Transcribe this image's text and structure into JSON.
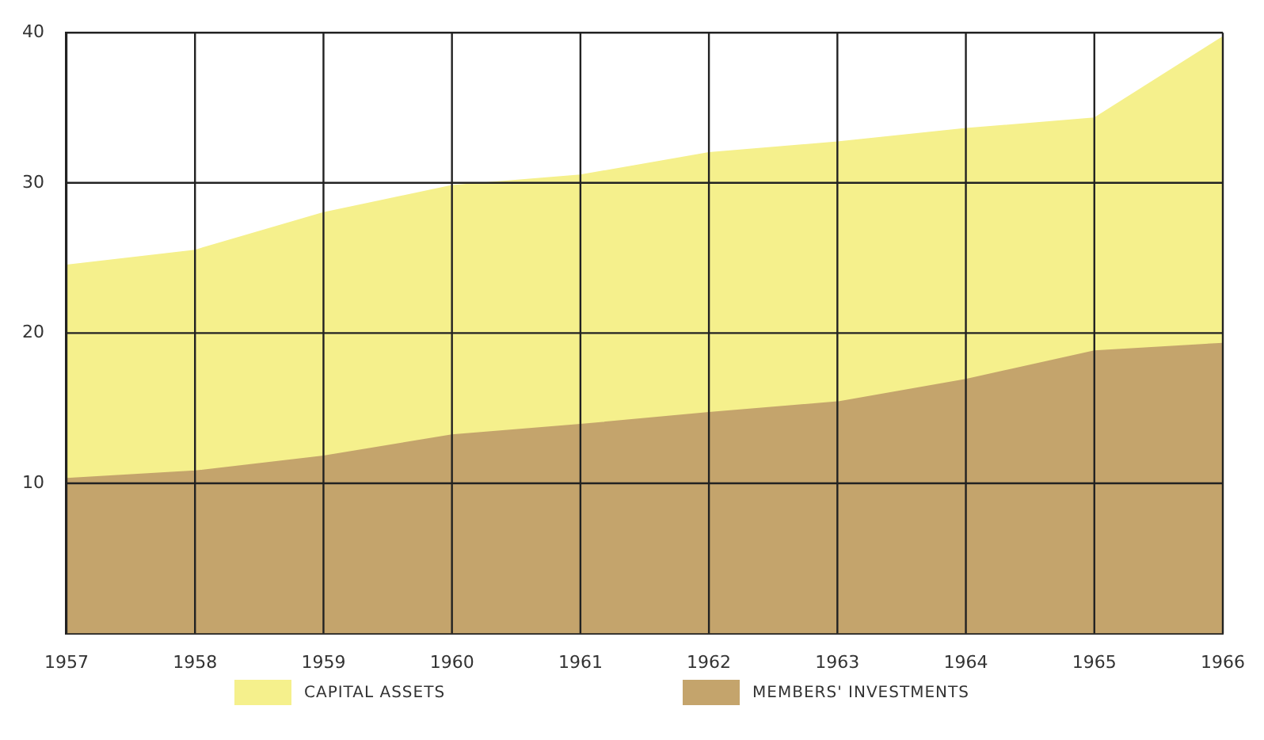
{
  "chart_data": {
    "type": "area",
    "stacked": true,
    "categories": [
      "1957",
      "1958",
      "1959",
      "1960",
      "1961",
      "1962",
      "1963",
      "1964",
      "1965",
      "1966"
    ],
    "series": [
      {
        "name": "MEMBERS' INVESTMENTS",
        "color": "#c4a46c",
        "values": [
          10.3,
          10.8,
          11.8,
          13.2,
          13.9,
          14.7,
          15.4,
          16.9,
          18.8,
          19.3
        ]
      },
      {
        "name": "CAPITAL ASSETS",
        "color": "#f5f08c",
        "values": [
          14.2,
          14.7,
          16.2,
          16.6,
          16.6,
          17.3,
          17.3,
          16.7,
          15.5,
          20.4
        ]
      }
    ],
    "ylim": [
      0,
      40
    ],
    "yticks": [
      10,
      20,
      30,
      40
    ],
    "grid": true,
    "legend": "bottom"
  }
}
